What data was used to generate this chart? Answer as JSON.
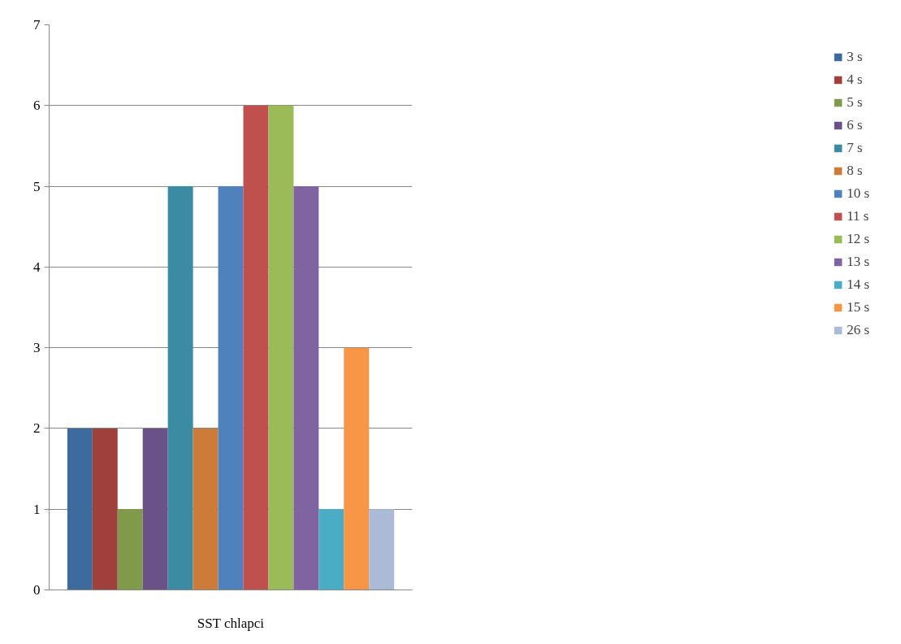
{
  "chart_data": {
    "type": "bar",
    "categories": [
      "SST chlapci"
    ],
    "series": [
      {
        "name": "3 s",
        "color": "#3e6b9e",
        "values": [
          2
        ]
      },
      {
        "name": "4 s",
        "color": "#a0403c",
        "values": [
          2
        ]
      },
      {
        "name": "5 s",
        "color": "#7f9a48",
        "values": [
          1
        ]
      },
      {
        "name": "6 s",
        "color": "#6a5186",
        "values": [
          2
        ]
      },
      {
        "name": "7 s",
        "color": "#3b8ca3",
        "values": [
          5
        ]
      },
      {
        "name": "8 s",
        "color": "#cc7b38",
        "values": [
          2
        ]
      },
      {
        "name": "10 s",
        "color": "#4f81bd",
        "values": [
          5
        ]
      },
      {
        "name": "11 s",
        "color": "#c0504d",
        "values": [
          6
        ]
      },
      {
        "name": "12 s",
        "color": "#9bbb59",
        "values": [
          6
        ]
      },
      {
        "name": "13 s",
        "color": "#8064a2",
        "values": [
          5
        ]
      },
      {
        "name": "14 s",
        "color": "#4bacc6",
        "values": [
          1
        ]
      },
      {
        "name": "15 s",
        "color": "#f79646",
        "values": [
          3
        ]
      },
      {
        "name": "26 s",
        "color": "#aabad7",
        "values": [
          1
        ]
      }
    ],
    "ylim": [
      0,
      7
    ],
    "yticks": [
      0,
      1,
      2,
      3,
      4,
      5,
      6,
      7
    ],
    "grid": "y",
    "legend": "right"
  }
}
